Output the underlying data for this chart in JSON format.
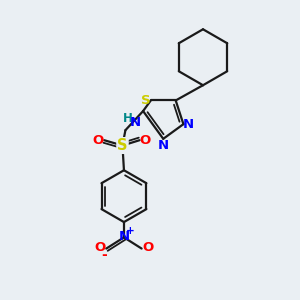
{
  "background_color": "#eaeff3",
  "bond_color": "#1a1a1a",
  "S_color": "#cccc00",
  "N_color": "#0000ff",
  "O_color": "#ff0000",
  "H_color": "#008888",
  "fig_size": [
    3.0,
    3.0
  ],
  "dpi": 100,
  "xlim": [
    0,
    10
  ],
  "ylim": [
    0,
    10
  ]
}
